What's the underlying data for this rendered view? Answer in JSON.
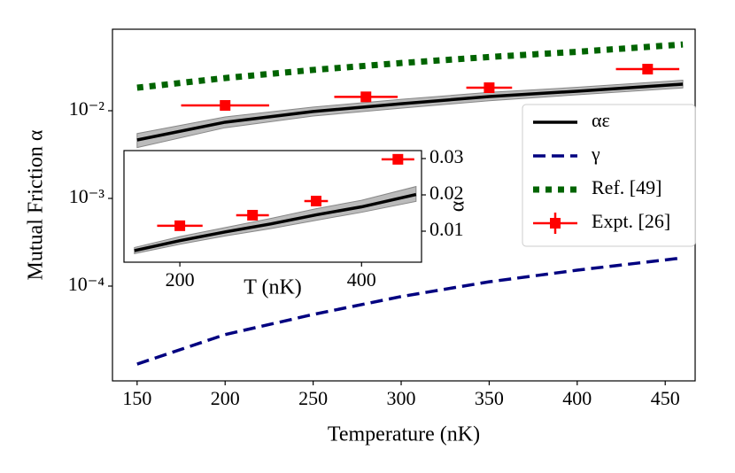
{
  "chart_data": [
    {
      "type": "line",
      "xlabel": "Temperature (nK)",
      "ylabel": "Mutual Friction α",
      "xlim": [
        136,
        467
      ],
      "ylim": [
        8.3e-06,
        0.085
      ],
      "log_y": true,
      "xticks": [
        150,
        200,
        250,
        300,
        350,
        400,
        450
      ],
      "yticks": [
        {
          "value": 0.0001,
          "label": "10⁻⁴"
        },
        {
          "value": 0.001,
          "label": "10⁻³"
        },
        {
          "value": 0.01,
          "label": "10⁻²"
        }
      ],
      "legend": "center right",
      "series": [
        {
          "name": "αε",
          "color": "#000000",
          "style": "solid",
          "x": [
            150,
            200,
            250,
            300,
            350,
            400,
            460
          ],
          "values": [
            0.00464,
            0.0074,
            0.0098,
            0.012,
            0.0145,
            0.0167,
            0.0201
          ],
          "lower": [
            0.0038,
            0.0064,
            0.0087,
            0.0107,
            0.013,
            0.0152,
            0.0182
          ],
          "upper": [
            0.0055,
            0.0085,
            0.011,
            0.0135,
            0.0162,
            0.0185,
            0.0223
          ],
          "band_color": "#bbbbbb"
        },
        {
          "name": "γ",
          "color": "#000080",
          "style": "dashed",
          "x": [
            150,
            200,
            250,
            300,
            350,
            400,
            460
          ],
          "values": [
            1.29e-05,
            2.8e-05,
            4.75e-05,
            7.6e-05,
            0.000112,
            0.000152,
            0.00021
          ]
        },
        {
          "name": "Ref. [49]",
          "color": "#006400",
          "style": "dotted",
          "x": [
            150,
            200,
            250,
            300,
            350,
            400,
            460
          ],
          "values": [
            0.0183,
            0.0236,
            0.0292,
            0.035,
            0.041,
            0.047,
            0.057
          ]
        },
        {
          "name": "Expt. [26]",
          "color": "#ff0000",
          "style": "errorbar",
          "x": [
            200,
            280,
            350,
            440
          ],
          "values": [
            0.0115,
            0.0144,
            0.0183,
            0.0298
          ],
          "xerr": [
            25,
            18,
            13,
            18
          ]
        }
      ]
    },
    {
      "type": "line",
      "xlabel": "T (nK)",
      "ylabel": "α",
      "yaxis": "right",
      "xlim": [
        138.5,
        466
      ],
      "ylim": [
        0.00146,
        0.0322
      ],
      "xticks": [
        200,
        400
      ],
      "yticks": [
        0.01,
        0.02,
        0.03
      ],
      "series": [
        {
          "color": "#000000",
          "style": "solid",
          "x": [
            150,
            200,
            250,
            300,
            350,
            400,
            460
          ],
          "values": [
            0.00464,
            0.0074,
            0.0098,
            0.012,
            0.0145,
            0.0167,
            0.0201
          ],
          "lower": [
            0.0038,
            0.0064,
            0.0087,
            0.0107,
            0.013,
            0.0152,
            0.0182
          ],
          "upper": [
            0.0055,
            0.0085,
            0.011,
            0.0135,
            0.0162,
            0.0185,
            0.0223
          ],
          "band_color": "#bbbbbb"
        },
        {
          "color": "#ff0000",
          "style": "errorbar",
          "x": [
            200,
            280,
            350,
            440
          ],
          "values": [
            0.0115,
            0.0144,
            0.0183,
            0.0298
          ],
          "xerr": [
            25,
            18,
            13,
            18
          ]
        }
      ]
    }
  ]
}
